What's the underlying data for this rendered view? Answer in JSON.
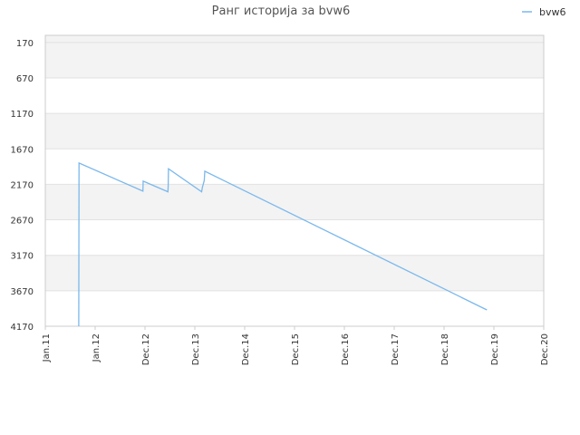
{
  "chart_data": {
    "type": "line",
    "title": "Ранг историја за bvw6",
    "xlabel": "",
    "ylabel": "",
    "y_inverted": true,
    "ylim": [
      70,
      4170
    ],
    "y_ticks": [
      170,
      670,
      1170,
      1670,
      2170,
      2670,
      3170,
      3670,
      4170
    ],
    "x_ticks": [
      "Jan.11",
      "Jan.12",
      "Dec.12",
      "Dec.13",
      "Dec.14",
      "Dec.15",
      "Dec.16",
      "Dec.17",
      "Dec.18",
      "Dec.19",
      "Dec.20"
    ],
    "xlim": [
      "2011-01",
      "2020-12"
    ],
    "legend": {
      "position": "top-right"
    },
    "grid": true,
    "colors": {
      "line": "#7ab8ec",
      "band": "#f3f3f3",
      "grid": "#e2e2e2",
      "axis": "#cccccc"
    },
    "series": [
      {
        "name": "bvw6",
        "points": [
          [
            "2011-09-01",
            4170
          ],
          [
            "2011-09-03",
            1870
          ],
          [
            "2012-12-10",
            2265
          ],
          [
            "2012-12-12",
            2125
          ],
          [
            "2013-06-10",
            2275
          ],
          [
            "2013-06-12",
            2190
          ],
          [
            "2013-06-14",
            1950
          ],
          [
            "2014-02-10",
            2275
          ],
          [
            "2014-02-15",
            2215
          ],
          [
            "2014-03-01",
            2115
          ],
          [
            "2014-03-05",
            1985
          ],
          [
            "2019-10-15",
            3940
          ]
        ]
      }
    ]
  }
}
